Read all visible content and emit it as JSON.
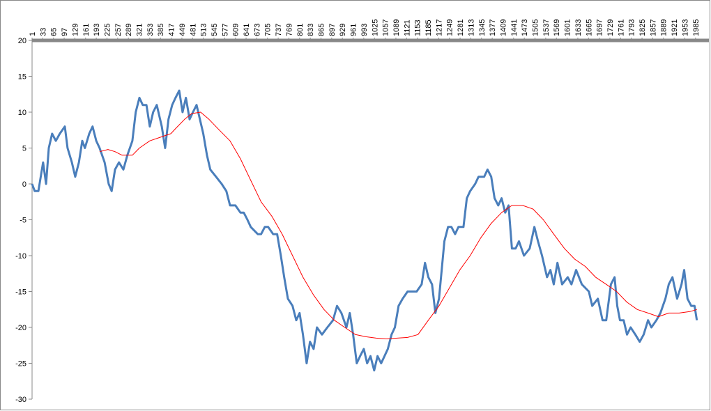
{
  "chart_data": {
    "type": "line",
    "xlim": [
      1,
      2000
    ],
    "xticks": [
      1,
      33,
      65,
      97,
      129,
      161,
      193,
      225,
      257,
      289,
      321,
      353,
      385,
      417,
      449,
      481,
      513,
      545,
      577,
      609,
      641,
      673,
      705,
      737,
      769,
      801,
      833,
      865,
      897,
      929,
      961,
      993,
      1025,
      1057,
      1089,
      1121,
      1153,
      1185,
      1217,
      1249,
      1281,
      1313,
      1345,
      1377,
      1409,
      1441,
      1473,
      1505,
      1537,
      1569,
      1601,
      1633,
      1665,
      1697,
      1729,
      1761,
      1793,
      1825,
      1857,
      1889,
      1921,
      1953,
      1985
    ],
    "ylim": [
      -30,
      20
    ],
    "yticks": [
      20,
      15,
      10,
      5,
      0,
      -5,
      -10,
      -15,
      -20,
      -25,
      -30
    ],
    "grid": false,
    "series": [
      {
        "color": "#4a7ebb",
        "width": 3,
        "x": [
          1,
          9,
          20,
          34,
          43,
          51,
          61,
          72,
          84,
          99,
          107,
          120,
          130,
          141,
          151,
          159,
          172,
          182,
          193,
          203,
          218,
          230,
          239,
          249,
          261,
          274,
          286,
          301,
          311,
          322,
          332,
          343,
          353,
          363,
          374,
          389,
          399,
          409,
          420,
          430,
          441,
          451,
          461,
          472,
          482,
          493,
          503,
          513,
          524,
          534,
          551,
          568,
          582,
          593,
          609,
          624,
          634,
          645,
          655,
          676,
          686,
          697,
          707,
          722,
          734,
          745,
          755,
          766,
          780,
          791,
          801,
          811,
          822,
          832,
          843,
          853,
          868,
          884,
          901,
          913,
          926,
          941,
          951,
          961,
          972,
          982,
          993,
          1003,
          1013,
          1024,
          1034,
          1045,
          1055,
          1065,
          1076,
          1086,
          1097,
          1109,
          1124,
          1141,
          1151,
          1166,
          1176,
          1186,
          1197,
          1207,
          1218,
          1234,
          1245,
          1255,
          1266,
          1276,
          1291,
          1301,
          1311,
          1326,
          1336,
          1353,
          1363,
          1374,
          1384,
          1395,
          1405,
          1416,
          1426,
          1436,
          1447,
          1457,
          1472,
          1489,
          1503,
          1514,
          1526,
          1541,
          1551,
          1561,
          1572,
          1586,
          1603,
          1614,
          1628,
          1645,
          1666,
          1676,
          1693,
          1707,
          1718,
          1732,
          1743,
          1751,
          1759,
          1770,
          1780,
          1791,
          1805,
          1818,
          1830,
          1843,
          1853,
          1868,
          1880,
          1895,
          1905,
          1916,
          1930,
          1943,
          1951,
          1961,
          1972,
          1982,
          1989
        ],
        "values": [
          0,
          -1,
          -1,
          3,
          0,
          5,
          7,
          6,
          7,
          8,
          5,
          3,
          1,
          3,
          6,
          5,
          7,
          8,
          6,
          5,
          3,
          0,
          -1,
          2,
          3,
          2,
          4,
          6,
          10,
          12,
          11,
          11,
          8,
          10,
          11,
          8,
          5,
          9,
          11,
          12,
          13,
          10,
          12,
          9,
          10,
          11,
          9,
          7,
          4,
          2,
          1,
          0,
          -1,
          -3,
          -3,
          -4,
          -4,
          -5,
          -6,
          -7,
          -7,
          -6,
          -6,
          -7,
          -7,
          -10,
          -13,
          -16,
          -17,
          -19,
          -18,
          -21,
          -25,
          -22,
          -23,
          -20,
          -21,
          -20,
          -19,
          -17,
          -18,
          -20,
          -18,
          -21,
          -25,
          -24,
          -23,
          -25,
          -24,
          -26,
          -24,
          -25,
          -24,
          -23,
          -21,
          -20,
          -17,
          -16,
          -15,
          -15,
          -15,
          -14,
          -11,
          -13,
          -14,
          -18,
          -16,
          -8,
          -6,
          -6,
          -7,
          -6,
          -6,
          -2,
          -1,
          0,
          1,
          1,
          2,
          1,
          -2,
          -3,
          -2,
          -4,
          -3,
          -9,
          -9,
          -8,
          -10,
          -9,
          -6,
          -8,
          -10,
          -13,
          -12,
          -14,
          -11,
          -14,
          -13,
          -14,
          -12,
          -14,
          -15,
          -17,
          -16,
          -19,
          -19,
          -14,
          -13,
          -17,
          -19,
          -19,
          -21,
          -20,
          -21,
          -22,
          -21,
          -19,
          -20,
          -19,
          -18,
          -16,
          -14,
          -13,
          -16,
          -14,
          -12,
          -16,
          -17,
          -17,
          -19
        ]
      },
      {
        "color": "#ff0000",
        "width": 1,
        "x": [
          203,
          228,
          249,
          270,
          301,
          322,
          353,
          384,
          416,
          436,
          457,
          478,
          505,
          530,
          561,
          593,
          624,
          655,
          686,
          718,
          749,
          780,
          811,
          843,
          874,
          905,
          936,
          968,
          999,
          1030,
          1061,
          1093,
          1124,
          1155,
          1186,
          1218,
          1249,
          1280,
          1311,
          1343,
          1374,
          1405,
          1436,
          1468,
          1499,
          1530,
          1561,
          1593,
          1624,
          1655,
          1686,
          1718,
          1749,
          1780,
          1811,
          1843,
          1874,
          1905,
          1936,
          1968,
          1989
        ],
        "values": [
          4.5,
          4.8,
          4.5,
          4,
          4,
          5,
          6,
          6.5,
          7,
          8,
          9,
          9.8,
          10,
          9,
          7.5,
          6,
          3.5,
          0.5,
          -2.5,
          -4.5,
          -7,
          -10,
          -13,
          -15.5,
          -17.5,
          -19,
          -20,
          -21,
          -21.3,
          -21.5,
          -21.6,
          -21.5,
          -21.4,
          -21,
          -19,
          -17,
          -14.5,
          -12,
          -10,
          -7.5,
          -5.5,
          -4,
          -3,
          -3,
          -3.5,
          -5,
          -7,
          -9,
          -10.5,
          -11.5,
          -13,
          -14,
          -15,
          -16.5,
          -17.5,
          -18,
          -18.5,
          -18,
          -18,
          -17.8,
          -17.5
        ]
      }
    ]
  }
}
